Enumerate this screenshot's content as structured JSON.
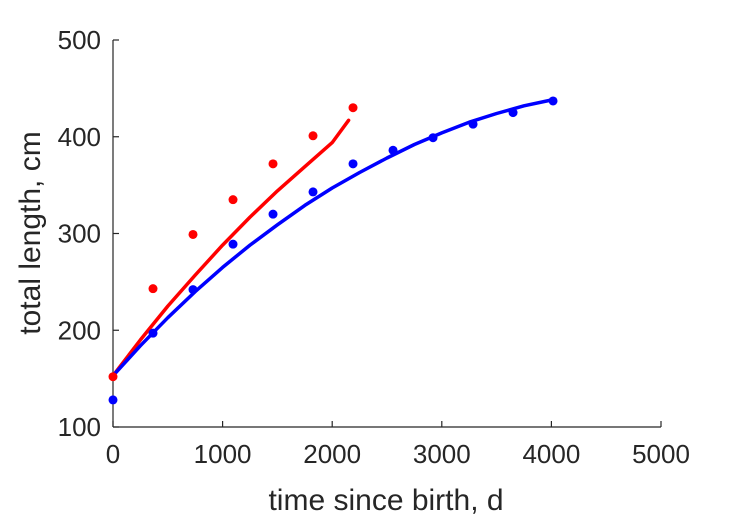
{
  "chart_data": {
    "type": "scatter",
    "xlabel": "time since birth, d",
    "ylabel": "total length, cm",
    "xlim": [
      0,
      5000
    ],
    "ylim": [
      100,
      500
    ],
    "xticks": [
      0,
      1000,
      2000,
      3000,
      4000,
      5000
    ],
    "yticks": [
      100,
      200,
      300,
      400,
      500
    ],
    "xtick_labels": [
      "0",
      "1000",
      "2000",
      "3000",
      "4000",
      "5000"
    ],
    "ytick_labels": [
      "100",
      "200",
      "300",
      "400",
      "500"
    ],
    "grid": false,
    "box": "left-bottom",
    "series": [
      {
        "color": "#ff0000",
        "kind": "points",
        "x": [
          0,
          365,
          730,
          1095,
          1460,
          1825,
          2190
        ],
        "y": [
          152,
          243,
          299,
          335,
          372,
          401,
          430
        ]
      },
      {
        "color": "#ff0000",
        "kind": "fit-line",
        "x": [
          0,
          250,
          500,
          750,
          1000,
          1250,
          1500,
          1750,
          2000,
          2150
        ],
        "y": [
          153,
          190,
          225,
          257,
          288,
          317,
          344,
          369,
          394,
          417
        ]
      },
      {
        "color": "#0000ff",
        "kind": "points",
        "x": [
          0,
          365,
          730,
          1095,
          1460,
          1825,
          2190,
          2555,
          2920,
          3285,
          3650,
          4015
        ],
        "y": [
          128,
          197,
          242,
          289,
          320,
          343,
          372,
          386,
          399,
          413,
          425,
          437
        ]
      },
      {
        "color": "#0000ff",
        "kind": "fit-line",
        "x": [
          0,
          250,
          500,
          750,
          1000,
          1250,
          1500,
          1750,
          2000,
          2250,
          2500,
          2750,
          3000,
          3250,
          3500,
          3750,
          4000
        ],
        "y": [
          153,
          184,
          213,
          240,
          265,
          288,
          309,
          329,
          347,
          363,
          378,
          392,
          404,
          415,
          424,
          432,
          438
        ]
      }
    ]
  }
}
